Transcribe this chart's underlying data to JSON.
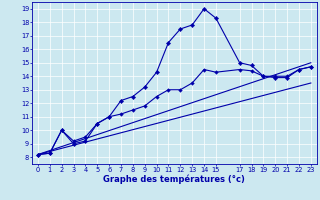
{
  "title": "Graphe des températures (°c)",
  "bg_color": "#cce8f0",
  "line_color": "#0000aa",
  "grid_color": "#ffffff",
  "xlim": [
    -0.5,
    23.5
  ],
  "ylim": [
    7.5,
    19.5
  ],
  "xticks": [
    0,
    1,
    2,
    3,
    4,
    5,
    6,
    7,
    8,
    9,
    10,
    11,
    12,
    13,
    14,
    15,
    17,
    18,
    19,
    20,
    21,
    22,
    23
  ],
  "yticks": [
    8,
    9,
    10,
    11,
    12,
    13,
    14,
    15,
    16,
    17,
    18,
    19
  ],
  "series1_x": [
    0,
    1,
    2,
    3,
    4,
    5,
    6,
    7,
    8,
    9,
    10,
    11,
    12,
    13,
    14,
    15,
    17,
    18,
    19,
    20,
    21,
    22,
    23
  ],
  "series1_y": [
    8.2,
    8.3,
    10.0,
    9.0,
    9.2,
    10.5,
    11.0,
    12.2,
    12.5,
    13.2,
    14.3,
    16.5,
    17.5,
    17.8,
    19.0,
    18.3,
    15.0,
    14.8,
    14.0,
    13.9,
    13.9,
    14.5,
    14.7
  ],
  "series2_x": [
    0,
    1,
    2,
    3,
    4,
    5,
    6,
    7,
    8,
    9,
    10,
    11,
    12,
    13,
    14,
    15,
    17,
    18,
    19,
    20,
    21,
    22,
    23
  ],
  "series2_y": [
    8.2,
    8.3,
    10.0,
    9.2,
    9.5,
    10.5,
    11.0,
    11.2,
    11.5,
    11.8,
    12.5,
    13.0,
    13.0,
    13.5,
    14.5,
    14.3,
    14.5,
    14.4,
    14.0,
    14.0,
    14.0,
    14.5,
    14.7
  ],
  "trend1_x": [
    0,
    23
  ],
  "trend1_y": [
    8.2,
    15.0
  ],
  "trend2_x": [
    0,
    23
  ],
  "trend2_y": [
    8.2,
    13.5
  ],
  "xlabel_fontsize": 6.0,
  "tick_fontsize": 4.8,
  "figsize": [
    3.2,
    2.0
  ],
  "dpi": 100
}
